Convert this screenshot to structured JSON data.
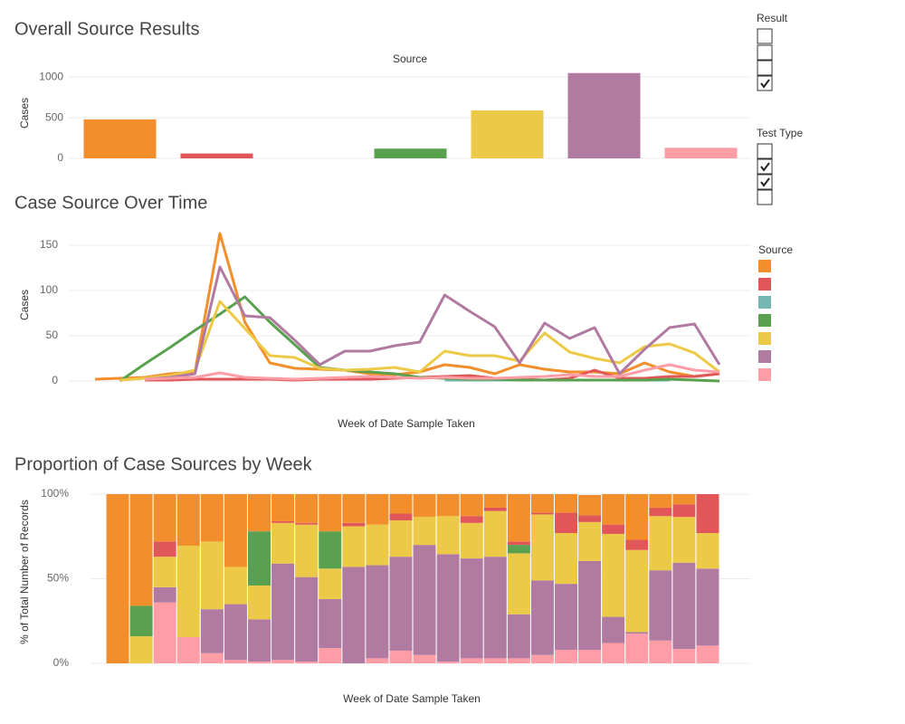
{
  "chart_data": [
    {
      "type": "bar",
      "title": "Overall Source Results",
      "x_label": "Source",
      "y_label": "Cases",
      "categories": [
        null,
        null,
        null,
        null,
        null,
        null,
        null
      ],
      "values": [
        480,
        60,
        0,
        120,
        590,
        1050,
        130
      ],
      "colors": [
        "#f28e2b",
        "#e15759",
        "#76b7b2",
        "#59a14f",
        "#edc948",
        "#b07aa1",
        "#ff9da7"
      ],
      "ylim": [
        0,
        1080
      ],
      "yticks": [
        0,
        500,
        1000
      ],
      "grid": true
    },
    {
      "type": "line",
      "title": "Case Source Over Time",
      "x_label": "Week of Date Sample Taken",
      "y_label": "Cases",
      "categories": [
        null,
        null,
        null,
        null,
        null,
        null,
        null,
        null,
        null,
        null,
        null,
        null,
        null,
        null,
        null,
        null,
        null,
        null,
        null,
        null,
        null,
        null,
        null,
        null,
        null,
        null
      ],
      "series": [
        {
          "color": "#f28e2b",
          "values": [
            2,
            3,
            4,
            8,
            10,
            163,
            65,
            20,
            14,
            13,
            12,
            8,
            7,
            10,
            18,
            15,
            8,
            18,
            13,
            10,
            10,
            8,
            20,
            10,
            5,
            8
          ]
        },
        {
          "color": "#e15759",
          "values": [
            null,
            null,
            1,
            1,
            2,
            2,
            2,
            2,
            1,
            2,
            2,
            2,
            3,
            4,
            5,
            6,
            3,
            2,
            1,
            3,
            12,
            3,
            3,
            5,
            5,
            8
          ]
        },
        {
          "color": "#76b7b2",
          "values": [
            null,
            null,
            null,
            null,
            null,
            null,
            null,
            null,
            null,
            null,
            null,
            null,
            null,
            null,
            1,
            1,
            1,
            1,
            1,
            1,
            1,
            1,
            1,
            1,
            null,
            null
          ]
        },
        {
          "color": "#59a14f",
          "values": [
            null,
            0,
            19,
            37,
            56,
            74,
            93,
            65,
            40,
            15,
            12,
            10,
            8,
            4,
            3,
            2,
            2,
            1,
            1,
            1,
            1,
            1,
            1,
            2,
            1,
            0
          ]
        },
        {
          "color": "#edc948",
          "values": [
            null,
            1,
            3,
            6,
            12,
            88,
            58,
            28,
            26,
            14,
            12,
            13,
            15,
            10,
            33,
            28,
            28,
            22,
            53,
            32,
            25,
            20,
            38,
            41,
            31,
            10
          ]
        },
        {
          "color": "#b07aa1",
          "values": [
            null,
            null,
            2,
            4,
            8,
            126,
            72,
            70,
            45,
            18,
            33,
            33,
            39,
            43,
            95,
            77,
            60,
            20,
            64,
            47,
            59,
            8,
            35,
            59,
            63,
            18
          ]
        },
        {
          "color": "#ff9da7",
          "values": [
            null,
            null,
            2,
            3,
            4,
            9,
            4,
            3,
            2,
            3,
            4,
            5,
            4,
            3,
            4,
            3,
            3,
            4,
            5,
            7,
            5,
            5,
            12,
            18,
            12,
            10
          ]
        }
      ],
      "ylim": [
        -7,
        172
      ],
      "yticks": [
        0,
        50,
        100,
        150
      ],
      "grid": true
    },
    {
      "type": "bar",
      "stacked": true,
      "title": "Proportion of Case Sources by Week",
      "x_label": "Week of Date Sample Taken",
      "y_label": "% of Total Number of Records",
      "categories": [
        null,
        null,
        null,
        null,
        null,
        null,
        null,
        null,
        null,
        null,
        null,
        null,
        null,
        null,
        null,
        null,
        null,
        null,
        null,
        null,
        null,
        null,
        null,
        null,
        null,
        null
      ],
      "series": [
        {
          "color": "#f28e2b",
          "values": [
            100,
            66,
            28,
            30.5,
            28,
            43,
            22,
            16,
            17,
            22,
            17,
            18,
            11.5,
            13.5,
            13,
            13,
            8,
            28,
            11,
            11,
            12,
            18,
            27,
            8,
            6,
            0
          ]
        },
        {
          "color": "#e15759",
          "values": [
            0,
            0,
            9,
            0,
            0,
            0,
            0,
            1,
            1,
            0,
            2,
            0,
            4,
            0,
            0,
            4,
            2,
            2,
            1,
            12,
            4,
            5.5,
            6,
            5,
            7.5,
            23
          ]
        },
        {
          "color": "#76b7b2",
          "values": [
            0,
            0,
            0,
            0,
            0,
            0,
            0,
            0,
            0,
            0,
            0,
            0,
            0,
            0,
            0,
            0,
            0,
            0,
            0,
            0,
            0,
            0,
            0,
            0,
            0,
            0
          ]
        },
        {
          "color": "#59a14f",
          "values": [
            0,
            18,
            0,
            0,
            0,
            0,
            32,
            0,
            0,
            22,
            0,
            0,
            0,
            0,
            0,
            0,
            0,
            5,
            0,
            0,
            0,
            0,
            0,
            0,
            0,
            0
          ]
        },
        {
          "color": "#edc948",
          "values": [
            0,
            16,
            18,
            54,
            40,
            22,
            20,
            24,
            31,
            18,
            24,
            24,
            21.5,
            16.5,
            22.5,
            21,
            27,
            36,
            39,
            30,
            23,
            49,
            48.5,
            32,
            27,
            21
          ]
        },
        {
          "color": "#b07aa1",
          "values": [
            0,
            0,
            9,
            0,
            26,
            33,
            25,
            57,
            50,
            29,
            57,
            55,
            55.5,
            65,
            63.5,
            59,
            60,
            26,
            44,
            39,
            52.5,
            15.5,
            1,
            41.5,
            51,
            45.5
          ]
        },
        {
          "color": "#ff9da7",
          "values": [
            0,
            0,
            36,
            15.5,
            6,
            2,
            1,
            2,
            1,
            9,
            0,
            3,
            7.5,
            5,
            1,
            3,
            3,
            3,
            5,
            8,
            8,
            12,
            17.5,
            13.5,
            8.5,
            10.5
          ]
        }
      ],
      "ylim": [
        0,
        100
      ],
      "yticks": [
        {
          "value": 0,
          "label": "0%"
        },
        {
          "value": 50,
          "label": "50%"
        },
        {
          "value": 100,
          "label": "100%"
        }
      ],
      "grid": true
    }
  ],
  "filters": [
    {
      "title": "Result",
      "checked": [
        false,
        false,
        false,
        true
      ]
    },
    {
      "title": "Test Type",
      "checked": [
        false,
        true,
        true,
        false
      ]
    }
  ],
  "legend": {
    "title": "Source"
  }
}
